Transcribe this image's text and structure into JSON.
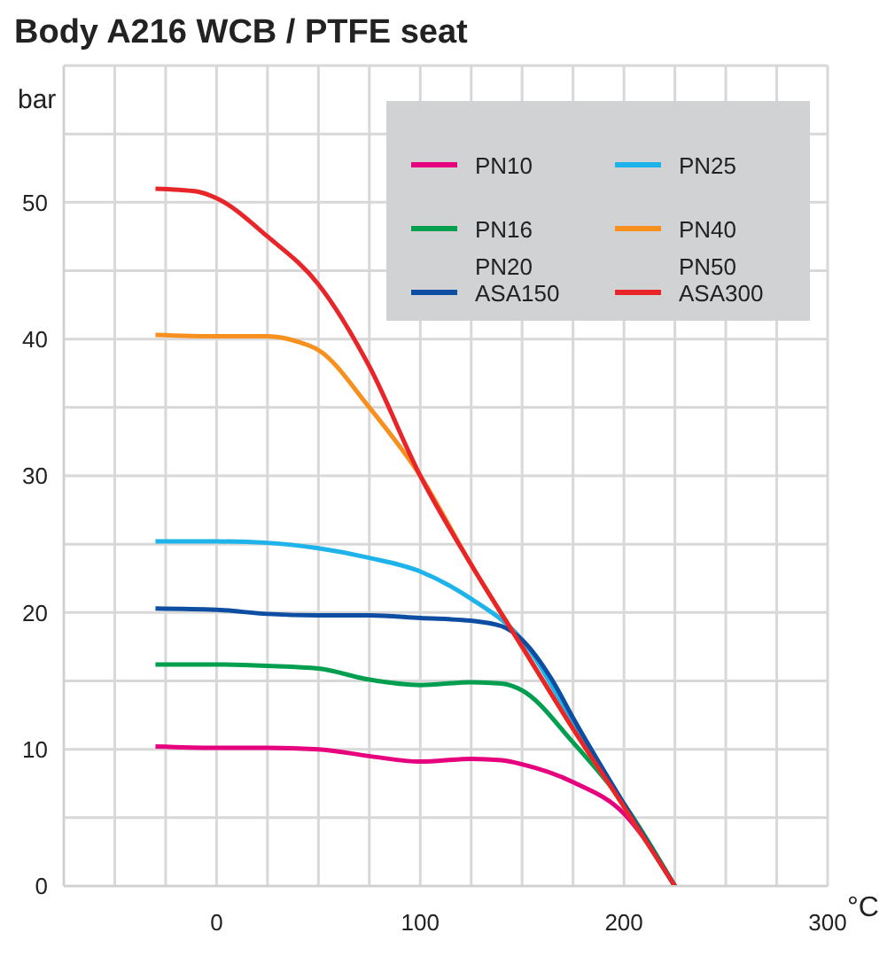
{
  "chart_data": {
    "type": "line",
    "title": "Body A216 WCB / PTFE seat",
    "xlabel": "°C",
    "ylabel": "bar",
    "xlim": [
      -75,
      300
    ],
    "ylim": [
      0,
      60
    ],
    "xticks": [
      {
        "value": -75,
        "label": null
      },
      {
        "value": -50,
        "label": null
      },
      {
        "value": -25,
        "label": null
      },
      0,
      {
        "value": 25,
        "label": null
      },
      {
        "value": 50,
        "label": null
      },
      {
        "value": 75,
        "label": null
      },
      100,
      {
        "value": 125,
        "label": null
      },
      {
        "value": 150,
        "label": null
      },
      {
        "value": 175,
        "label": null
      },
      200,
      {
        "value": 225,
        "label": null
      },
      {
        "value": 250,
        "label": null
      },
      {
        "value": 275,
        "label": null
      },
      300
    ],
    "yticks": [
      0,
      {
        "value": 5,
        "label": null
      },
      10,
      {
        "value": 15,
        "label": null
      },
      20,
      {
        "value": 25,
        "label": null
      },
      30,
      {
        "value": 35,
        "label": null
      },
      40,
      {
        "value": 45,
        "label": null
      },
      50,
      {
        "value": 55,
        "label": null
      },
      {
        "value": 60,
        "label": null
      }
    ],
    "grid": true,
    "legend": "top right",
    "marker": "none",
    "line_style": "solid",
    "series": [
      {
        "name": "PN10",
        "color": "#e6007e",
        "x": [
          -30,
          0,
          25,
          50,
          75,
          100,
          125,
          140,
          150,
          175,
          200,
          225
        ],
        "values": [
          10.2,
          10.1,
          10.1,
          10,
          9.5,
          9.1,
          9.3,
          9.2,
          8.9,
          7.6,
          5.3,
          0
        ]
      },
      {
        "name": "PN25",
        "color": "#1fb3ec",
        "x": [
          -30,
          0,
          25,
          50,
          75,
          100,
          125,
          150,
          175,
          200,
          225
        ],
        "values": [
          25.2,
          25.2,
          25.1,
          24.7,
          24,
          23,
          21,
          18,
          12,
          6,
          0
        ]
      },
      {
        "name": "PN16",
        "color": "#009e4f",
        "x": [
          -30,
          0,
          25,
          50,
          75,
          100,
          125,
          140,
          150,
          175,
          200,
          225
        ],
        "values": [
          16.2,
          16.2,
          16.1,
          15.9,
          15.1,
          14.7,
          14.9,
          14.8,
          14.3,
          10.5,
          6,
          0
        ]
      },
      {
        "name": "PN40",
        "color": "#f7901e",
        "x": [
          -30,
          0,
          25,
          40,
          50,
          75,
          100,
          125,
          150,
          175,
          200,
          225
        ],
        "values": [
          40.3,
          40.2,
          40.2,
          39.8,
          39.2,
          35,
          30,
          23.5,
          17.5,
          11.5,
          5.8,
          0
        ]
      },
      {
        "name": "PN20 ASA150",
        "color": "#0d4ea2",
        "x": [
          -30,
          0,
          25,
          50,
          75,
          100,
          125,
          140,
          150,
          165,
          175,
          200,
          225
        ],
        "values": [
          20.3,
          20.2,
          19.9,
          19.8,
          19.8,
          19.6,
          19.4,
          19,
          18,
          15,
          12.3,
          6,
          0
        ]
      },
      {
        "name": "PN50 ASA300",
        "color": "#e8262a",
        "x": [
          -30,
          -10,
          0,
          25,
          50,
          75,
          100,
          125,
          150,
          175,
          200,
          225
        ],
        "values": [
          51,
          50.8,
          50.3,
          47.5,
          44,
          38,
          30,
          23.5,
          17.5,
          11.5,
          5.8,
          0
        ]
      }
    ]
  }
}
